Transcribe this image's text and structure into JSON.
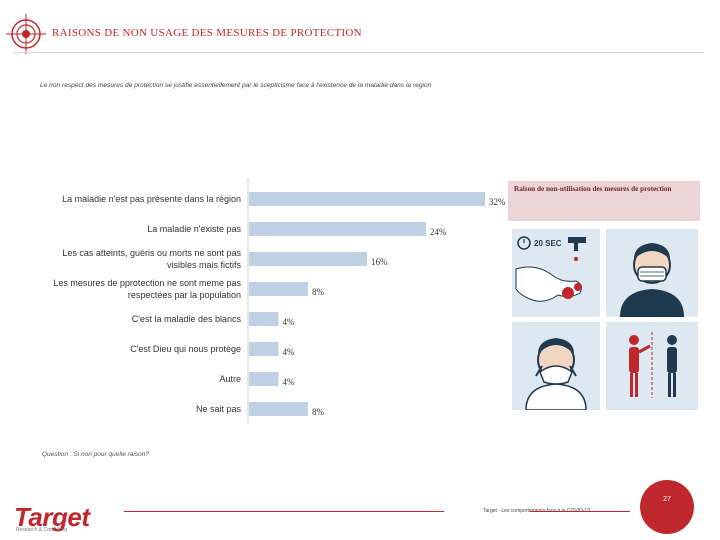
{
  "header": {
    "title": "RAISONS DE NON USAGE DES MESURES DE PROTECTION"
  },
  "subtitle": "Le non respect des mesures de protection se justifie essentiellement par le scepticisme face à l'existence de la maladie dans la region",
  "chart_data": {
    "type": "bar",
    "orientation": "horizontal",
    "categories": [
      "La maladie n'est pas présente dans la région",
      "La maladie n'existe pas",
      "Les cas atteints, guéris ou morts ne sont pas visibles mais fictifs",
      "Les mesures de pprotection ne sont meme pas respectées par la population",
      "C'est la maladie des blancs",
      "C'est Dieu qui nous protège",
      "Autre",
      "Ne sait pas"
    ],
    "values": [
      32,
      24,
      16,
      8,
      4,
      4,
      4,
      8
    ],
    "value_labels": [
      "32%",
      "24%",
      "16%",
      "8%",
      "4%",
      "4%",
      "4%",
      "8%"
    ],
    "xlim": [
      0,
      40
    ],
    "bar_color": "#bfd0e4",
    "grid": false
  },
  "question": "Question : Si non pour quelle raison?",
  "side_panel": {
    "title": "Raison de non-utilisation des mesures de protection",
    "timer_label": "20 SEC"
  },
  "footer": {
    "brand": "Target",
    "brand_sub": "Research & Consulting",
    "source": "Target - Les comportements face à la COVID-19",
    "page_number": "27"
  },
  "colors": {
    "accent": "#c0272d",
    "tile": "#dde8f0",
    "figure": "#1f3a4d"
  }
}
